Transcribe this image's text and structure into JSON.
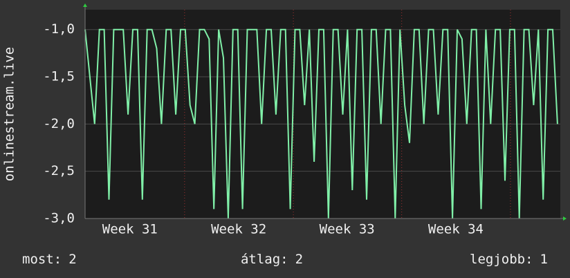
{
  "chart_data": {
    "type": "line",
    "y_label": "onlinestream.live",
    "x": [
      0,
      1,
      2,
      3,
      4,
      5,
      6,
      7,
      8,
      9,
      10,
      11,
      12,
      13,
      14,
      15,
      16,
      17,
      18,
      19,
      20,
      21,
      22,
      23,
      24,
      25,
      26,
      27,
      28,
      29,
      30,
      31,
      32,
      33,
      34,
      35,
      36,
      37,
      38,
      39,
      40,
      41,
      42,
      43,
      44,
      45,
      46,
      47,
      48,
      49,
      50,
      51,
      52,
      53,
      54,
      55,
      56,
      57,
      58,
      59,
      60,
      61,
      62,
      63,
      64,
      65,
      66,
      67,
      68,
      69,
      70,
      71,
      72,
      73,
      74,
      75,
      76,
      77,
      78,
      79,
      80,
      81,
      82,
      83,
      84,
      85,
      86,
      87,
      88,
      89,
      90,
      91,
      92,
      93,
      94,
      95,
      96,
      97,
      98,
      99
    ],
    "values": [
      -1,
      -1.5,
      -2,
      -1,
      -1,
      -2.8,
      -1,
      -1,
      -1,
      -1.9,
      -1,
      -1,
      -2.8,
      -1,
      -1,
      -1.2,
      -2,
      -1,
      -1,
      -1.9,
      -1,
      -1,
      -1.8,
      -2,
      -1,
      -1,
      -1.1,
      -2.9,
      -1,
      -1.3,
      -3,
      -1,
      -1,
      -2.9,
      -1,
      -1,
      -1,
      -2,
      -1,
      -1,
      -1.9,
      -1,
      -1,
      -2.9,
      -1,
      -1,
      -1.8,
      -1,
      -2.4,
      -1,
      -1,
      -3,
      -1,
      -1,
      -1.9,
      -1,
      -2.7,
      -1,
      -1,
      -2.8,
      -1,
      -1,
      -2,
      -1,
      -1,
      -3,
      -1,
      -1.8,
      -2.2,
      -1,
      -1,
      -2,
      -1,
      -1,
      -1.9,
      -1,
      -1,
      -3,
      -1,
      -1.1,
      -2,
      -1,
      -1,
      -2.9,
      -1,
      -2,
      -1,
      -1,
      -2.6,
      -1,
      -1,
      -3,
      -1,
      -1,
      -1.8,
      -1,
      -2.8,
      -1,
      -1,
      -2
    ],
    "color": "#80f0a8",
    "xlim": [
      0,
      99.6
    ],
    "xticks": [
      {
        "value": 9.4,
        "label": "Week 31"
      },
      {
        "value": 32.2,
        "label": "Week 32"
      },
      {
        "value": 54.9,
        "label": "Week 33"
      },
      {
        "value": 77.7,
        "label": "Week 34"
      }
    ],
    "ylim": [
      -3.0,
      -0.79
    ],
    "yticks": [
      {
        "value": -3.0,
        "label": "-3,0"
      },
      {
        "value": -2.5,
        "label": "-2,5"
      },
      {
        "value": -2.0,
        "label": "-2,0"
      },
      {
        "value": -1.5,
        "label": "-1,5"
      },
      {
        "value": -1.0,
        "label": "-1,0"
      }
    ],
    "grid": true,
    "stats": [
      {
        "label": "most:",
        "value": 2
      },
      {
        "label": "átlag:",
        "value": 2
      },
      {
        "label": "legjobb:",
        "value": 1
      }
    ]
  }
}
